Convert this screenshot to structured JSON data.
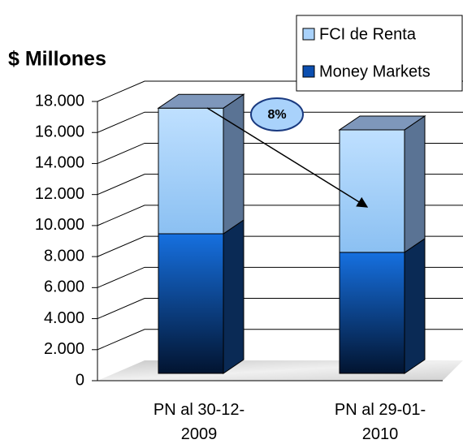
{
  "chart_data": {
    "type": "bar3d_stacked",
    "title": "$ Millones",
    "categories": [
      "PN al 30-12-2009",
      "PN al 29-01-2010"
    ],
    "series": [
      {
        "name": "FCI de Renta",
        "color": "#a9d2fb",
        "values": [
          8100,
          7900
        ]
      },
      {
        "name": "Money Markets",
        "color": "#0c4fb0",
        "values": [
          9000,
          7800
        ]
      }
    ],
    "ylim": [
      0,
      18000
    ],
    "yticks": [
      0,
      {
        "value": 2000,
        "label": "2.000"
      },
      {
        "value": 4000,
        "label": "4.000"
      },
      {
        "value": 6000,
        "label": "6.000"
      },
      {
        "value": 8000,
        "label": "8.000"
      },
      {
        "value": 10000,
        "label": "10.000"
      },
      {
        "value": 12000,
        "label": "12.000"
      },
      {
        "value": 14000,
        "label": "14.000"
      },
      {
        "value": 16000,
        "label": "16.000"
      },
      {
        "value": 18000,
        "label": "18.000"
      }
    ],
    "annotation": "8%",
    "grid": true,
    "legend": "top-right"
  }
}
